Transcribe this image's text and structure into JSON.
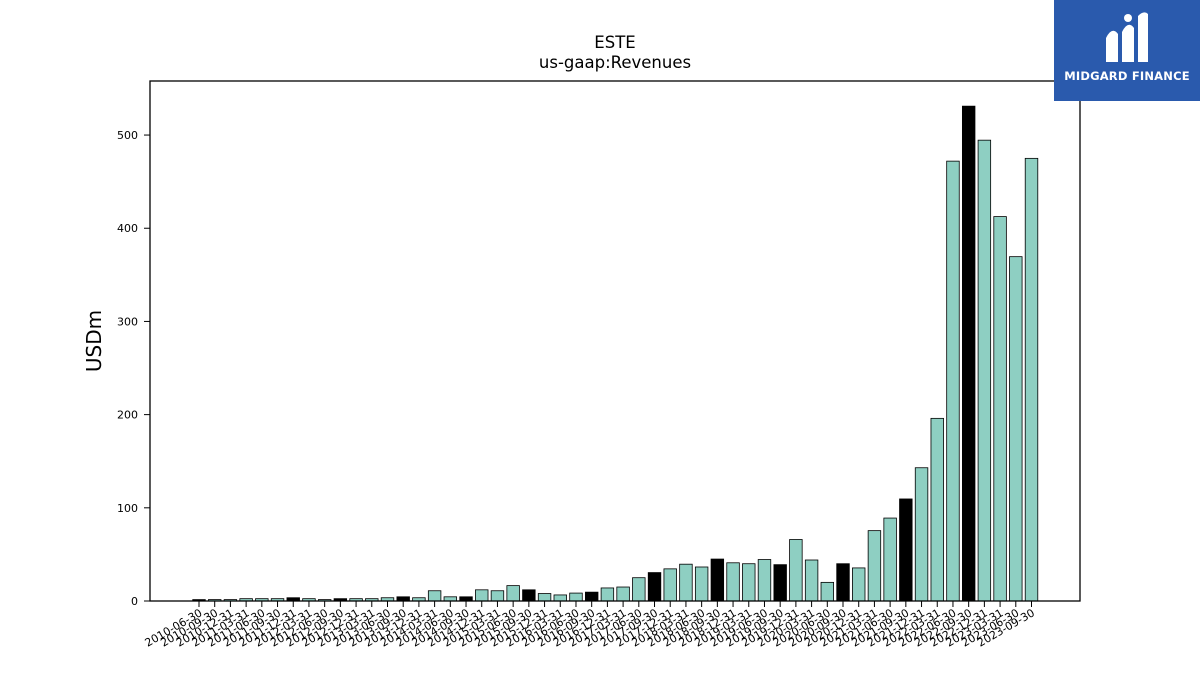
{
  "chart_data": {
    "type": "bar",
    "title": "ESTE",
    "subtitle": "us-gaap:Revenues",
    "xlabel": "",
    "ylabel": "USDm",
    "ylim": [
      0,
      558
    ],
    "yticks": [
      0,
      100,
      200,
      300,
      400,
      500
    ],
    "grid": false,
    "colors": {
      "teal": "#8ecfc2",
      "black": "#000000",
      "edge": "#000000"
    },
    "categories": [
      "2010-06-30",
      "2010-09-30",
      "2010-12-31",
      "2011-03-31",
      "2011-06-30",
      "2011-09-30",
      "2011-12-31",
      "2012-03-31",
      "2012-06-30",
      "2012-09-30",
      "2012-12-31",
      "2013-03-31",
      "2013-06-30",
      "2013-09-30",
      "2013-12-31",
      "2014-03-31",
      "2014-06-30",
      "2014-09-30",
      "2014-12-31",
      "2015-03-31",
      "2015-06-30",
      "2015-09-30",
      "2015-12-31",
      "2016-03-31",
      "2016-06-30",
      "2016-09-30",
      "2016-12-31",
      "2017-03-31",
      "2017-06-30",
      "2017-09-30",
      "2017-12-31",
      "2018-03-31",
      "2018-06-30",
      "2018-09-30",
      "2018-12-31",
      "2019-03-31",
      "2019-06-30",
      "2019-09-30",
      "2019-12-31",
      "2020-03-31",
      "2020-06-30",
      "2020-09-30",
      "2020-12-31",
      "2021-03-31",
      "2021-06-30",
      "2021-09-30",
      "2021-12-31",
      "2022-03-31",
      "2022-06-30",
      "2022-09-30",
      "2022-12-31",
      "2023-03-31",
      "2023-06-30",
      "2023-09-30"
    ],
    "values": [
      1.5,
      1.5,
      1.5,
      2.5,
      2.5,
      2.5,
      3.5,
      2.5,
      1.5,
      2.5,
      2.5,
      2.5,
      3.5,
      4.5,
      3.5,
      11,
      4.5,
      4.5,
      12,
      11,
      16.5,
      12,
      8,
      6.5,
      8.5,
      9.5,
      14,
      15,
      25,
      30.5,
      34.5,
      39.5,
      36.5,
      45,
      41,
      40,
      44.5,
      39,
      66,
      44,
      20,
      40,
      35.5,
      75.5,
      89,
      109.5,
      143,
      196,
      472,
      531,
      494.5,
      412.5,
      369.5,
      475
    ],
    "bar_colors": [
      "black",
      "teal",
      "teal",
      "teal",
      "teal",
      "teal",
      "black",
      "teal",
      "teal",
      "black",
      "teal",
      "teal",
      "teal",
      "black",
      "teal",
      "teal",
      "teal",
      "black",
      "teal",
      "teal",
      "teal",
      "black",
      "teal",
      "teal",
      "teal",
      "black",
      "teal",
      "teal",
      "teal",
      "black",
      "teal",
      "teal",
      "teal",
      "black",
      "teal",
      "teal",
      "teal",
      "black",
      "teal",
      "teal",
      "teal",
      "black",
      "teal",
      "teal",
      "teal",
      "black",
      "teal",
      "teal",
      "teal",
      "black",
      "teal",
      "teal",
      "teal",
      "teal"
    ]
  },
  "logo": {
    "text": "MIDGARD FINANCE",
    "background": "#2a5aad"
  }
}
